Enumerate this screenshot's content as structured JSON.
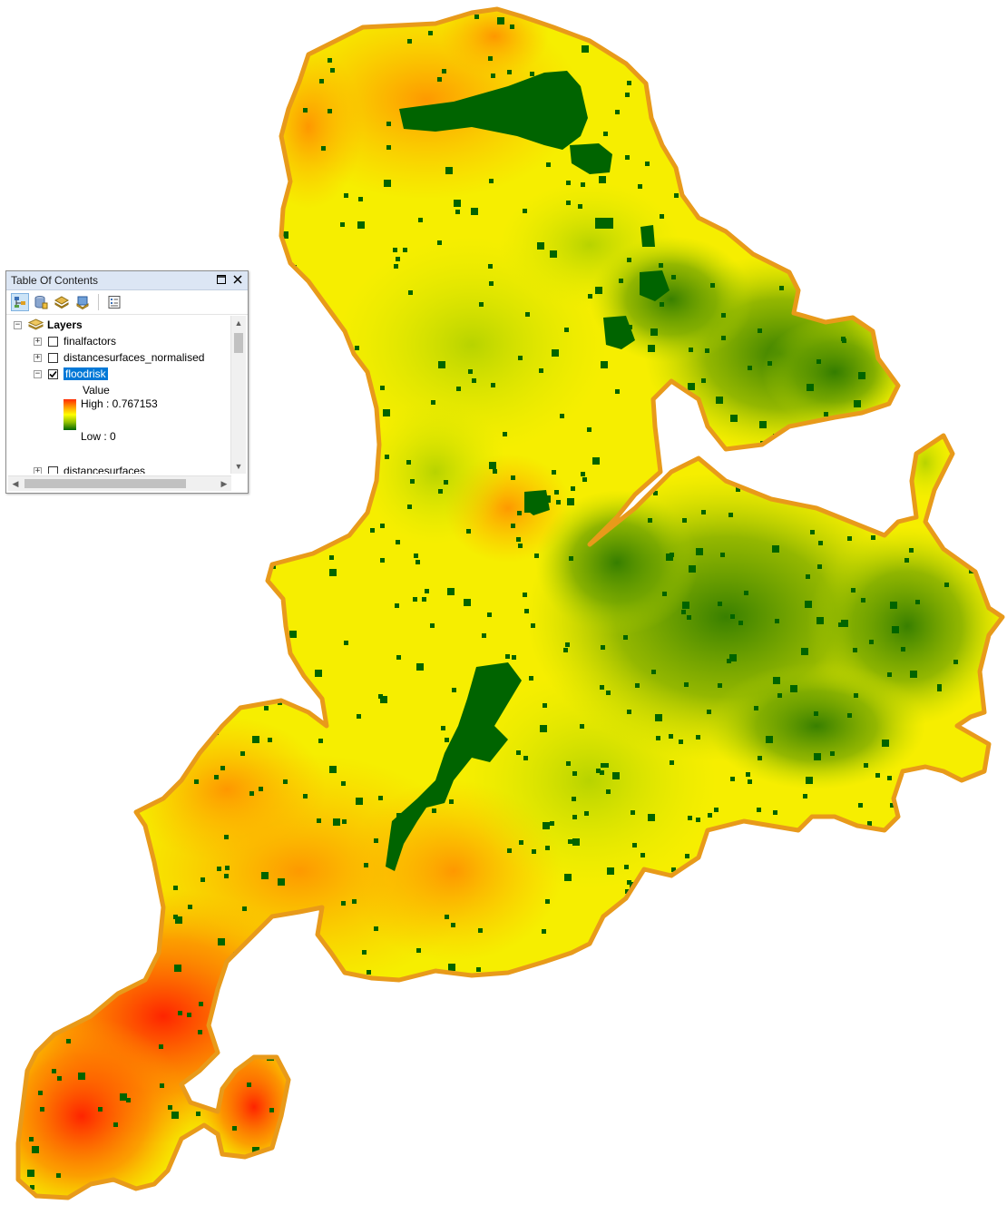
{
  "toc": {
    "title": "Table Of Contents",
    "group_label": "Layers",
    "layers": [
      {
        "name": "finalfactors",
        "checked": false,
        "expanded": false
      },
      {
        "name": "distancesurfaces_normalised",
        "checked": false,
        "expanded": false
      },
      {
        "name": "floodrisk",
        "checked": true,
        "expanded": true,
        "selected": true
      },
      {
        "name": "distancesurfaces",
        "checked": false,
        "expanded": false
      }
    ],
    "legend": {
      "field": "Value",
      "high_label": "High : 0.767153",
      "low_label": "Low : 0"
    }
  },
  "colors": {
    "high": "#ff2a00",
    "mid": "#ffff00",
    "low": "#006400",
    "outline": "#e89a1a",
    "toc_selected": "#0078d7"
  },
  "icons": {
    "list_by_drawing_order": "layers-draw-order-icon",
    "list_by_source": "database-icon",
    "list_by_visibility": "layers-visibility-icon",
    "list_by_selection": "selection-icon",
    "options": "options-icon"
  }
}
